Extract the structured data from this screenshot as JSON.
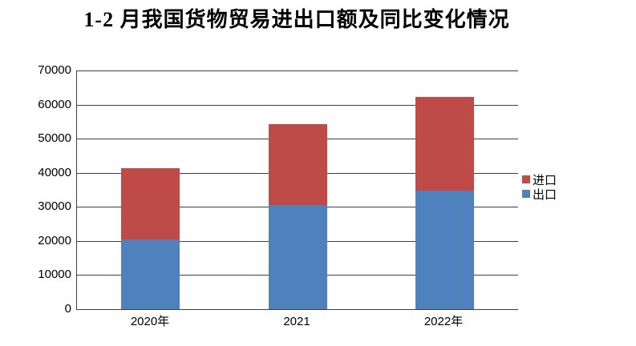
{
  "title": "1-2 月我国货物贸易进出口额及同比变化情况",
  "legend": [
    {
      "key": "import",
      "label": "进口",
      "color": "#BE4B48"
    },
    {
      "key": "export",
      "label": "出口",
      "color": "#4F81BD"
    }
  ],
  "chart_data": {
    "type": "bar",
    "stacked": true,
    "title": "1-2 月我国货物贸易进出口额及同比变化情况",
    "categories": [
      "2020年",
      "2021",
      "2022年"
    ],
    "series": [
      {
        "key": "export",
        "name": "出口",
        "color": "#4F81BD",
        "values": [
          20406,
          30588,
          34668
        ]
      },
      {
        "key": "import",
        "name": "进口",
        "color": "#BE4B48",
        "values": [
          20832,
          23824,
          27376
        ]
      }
    ],
    "stack_totals": [
      41238,
      54412,
      62044
    ],
    "xlabel": "",
    "ylabel": "",
    "ylim": [
      0,
      70000
    ],
    "yticks": [
      0,
      10000,
      20000,
      30000,
      40000,
      50000,
      60000,
      70000
    ],
    "grid": true,
    "legend_position": "right"
  }
}
